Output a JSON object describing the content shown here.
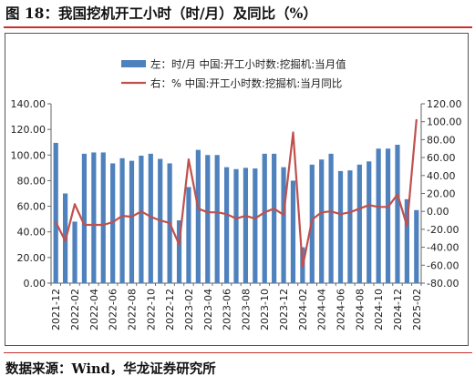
{
  "figure": {
    "title": "图 18：我国挖机开工小时（时/月）及同比（%）",
    "source": "数据来源：Wind，华龙证券研究所"
  },
  "chart_data": {
    "type": "bar",
    "categories": [
      "2021-12",
      "2022-01",
      "2022-02",
      "2022-03",
      "2022-04",
      "2022-05",
      "2022-06",
      "2022-07",
      "2022-08",
      "2022-09",
      "2022-10",
      "2022-11",
      "2022-12",
      "2023-01",
      "2023-02",
      "2023-03",
      "2023-04",
      "2023-05",
      "2023-06",
      "2023-07",
      "2023-08",
      "2023-09",
      "2023-10",
      "2023-11",
      "2023-12",
      "2024-01",
      "2024-02",
      "2024-03",
      "2024-04",
      "2024-05",
      "2024-06",
      "2024-07",
      "2024-08",
      "2024-09",
      "2024-10",
      "2024-11",
      "2024-12",
      "2025-01",
      "2025-02"
    ],
    "x_tick_labels": [
      "2021-12",
      "2022-02",
      "2022-04",
      "2022-06",
      "2022-08",
      "2022-10",
      "2022-12",
      "2023-02",
      "2023-04",
      "2023-06",
      "2023-08",
      "2023-10",
      "2023-12",
      "2024-02",
      "2024-04",
      "2024-06",
      "2024-08",
      "2024-10",
      "2024-12",
      "2025-02"
    ],
    "series": [
      {
        "name": "左：时/月 中国:开工小时数:挖掘机:当月值",
        "type": "bar",
        "axis": "left",
        "color": "#4f81bd",
        "values": [
          109.5,
          70,
          48,
          101,
          102,
          102,
          93.5,
          97.5,
          95.5,
          99.5,
          101,
          97,
          93.5,
          49,
          75,
          104,
          100,
          100,
          90.5,
          89,
          90,
          89.5,
          101,
          101,
          90.5,
          80,
          28,
          92.5,
          96.5,
          101,
          87.5,
          88,
          92.5,
          95,
          105,
          105,
          108,
          65.5,
          57
        ]
      },
      {
        "name": "右：% 中国:开工小时数:挖掘机:当月同比",
        "type": "line",
        "axis": "right",
        "color": "#c0504d",
        "values": [
          -12,
          -33,
          8,
          -15,
          -15,
          -15,
          -12,
          -5,
          -6,
          0,
          -6,
          -10,
          -13,
          -37,
          58,
          3,
          -1,
          -1,
          -3,
          -8,
          -5,
          -8,
          -1,
          3,
          -4,
          88,
          -62,
          -9,
          -1,
          0,
          -3,
          -1,
          3,
          7,
          5,
          5,
          19,
          -16,
          102
        ]
      }
    ],
    "y_left": {
      "min": 0,
      "max": 140,
      "step": 20,
      "tick_labels": [
        "0.00",
        "20.00",
        "40.00",
        "60.00",
        "80.00",
        "100.00",
        "120.00",
        "140.00"
      ]
    },
    "y_right": {
      "min": -80,
      "max": 120,
      "step": 20,
      "tick_labels": [
        "-80.00",
        "-60.00",
        "-40.00",
        "-20.00",
        "0.00",
        "20.00",
        "40.00",
        "60.00",
        "80.00",
        "100.00",
        "120.00"
      ]
    },
    "xlabel": "",
    "ylabel": "",
    "legend_position": "top",
    "grid": false
  }
}
